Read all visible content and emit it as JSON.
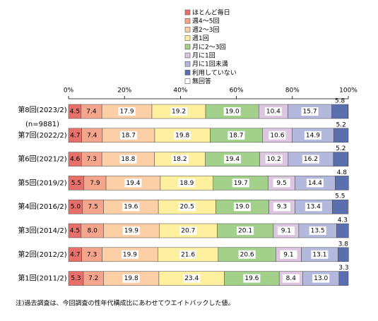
{
  "chart_data": {
    "type": "stacked-bar-horizontal",
    "categories": [
      "第8回(2023/2)",
      "第7回(2022/2)",
      "第6回(2021/2)",
      "第5回(2019/2)",
      "第4回(2016/2)",
      "第3回(2014/2)",
      "第2回(2012/2)",
      "第1回(2011/2)"
    ],
    "category_note": "(n=9881)",
    "xlim": [
      0,
      100
    ],
    "xticks": [
      {
        "value": 0,
        "label": "0%"
      },
      {
        "value": 20,
        "label": "20%"
      },
      {
        "value": 40,
        "label": "40%"
      },
      {
        "value": 60,
        "label": "60%"
      },
      {
        "value": 80,
        "label": "80%"
      },
      {
        "value": 100,
        "label": "100%"
      }
    ],
    "series": [
      {
        "name": "ほとんど毎日",
        "color": "#e8706a",
        "values": [
          4.5,
          4.7,
          4.6,
          5.5,
          5.0,
          4.5,
          4.7,
          5.3
        ],
        "value_labels": [
          "4.5",
          "4.7",
          "4.6",
          "5.5",
          "5.0",
          "4.5",
          "4.7",
          "5.3"
        ]
      },
      {
        "name": "週4～5回",
        "color": "#f4a58c",
        "values": [
          7.4,
          7.4,
          7.3,
          7.9,
          7.5,
          8.0,
          7.3,
          7.2
        ],
        "value_labels": [
          "7.4",
          "7.4",
          "7.3",
          "7.9",
          "7.5",
          "8.0",
          "7.3",
          "7.2"
        ]
      },
      {
        "name": "週2～3回",
        "color": "#fccfa6",
        "values": [
          17.9,
          18.7,
          18.8,
          19.4,
          19.6,
          19.9,
          19.9,
          19.8
        ],
        "value_labels": [
          "17.9",
          "18.7",
          "18.8",
          "19.4",
          "19.6",
          "19.9",
          "19.9",
          "19.8"
        ]
      },
      {
        "name": "週1回",
        "color": "#fff0a0",
        "values": [
          19.2,
          19.8,
          18.2,
          18.9,
          20.5,
          20.7,
          21.6,
          23.4
        ],
        "value_labels": [
          "19.2",
          "19.8",
          "18.2",
          "18.9",
          "20.5",
          "20.7",
          "21.6",
          "23.4"
        ]
      },
      {
        "name": "月に2～3回",
        "color": "#a3d18c",
        "values": [
          19.0,
          18.7,
          19.4,
          19.7,
          19.0,
          20.1,
          20.6,
          19.6
        ],
        "value_labels": [
          "19.0",
          "18.7",
          "19.4",
          "19.7",
          "19.0",
          "20.1",
          "20.6",
          "19.6"
        ]
      },
      {
        "name": "月に1回",
        "color": "#dcc6e0",
        "values": [
          10.4,
          10.6,
          10.2,
          9.5,
          9.3,
          9.1,
          9.1,
          8.4
        ],
        "value_labels": [
          "10.4",
          "10.6",
          "10.2",
          "9.5",
          "9.3",
          "9.1",
          "9.1",
          "8.4"
        ]
      },
      {
        "name": "月に1回未満",
        "color": "#b3b8dd",
        "values": [
          15.7,
          14.9,
          16.2,
          14.4,
          13.4,
          13.5,
          13.1,
          13.0
        ],
        "value_labels": [
          "15.7",
          "14.9",
          "16.2",
          "14.4",
          "13.4",
          "13.5",
          "13.1",
          "13.0"
        ]
      },
      {
        "name": "利用していない",
        "color": "#5b6fae",
        "values": [
          5.8,
          5.2,
          5.2,
          4.8,
          5.5,
          4.3,
          3.8,
          3.3
        ],
        "value_labels": [
          "5.8",
          "5.2",
          "5.2",
          "4.8",
          "5.5",
          "4.3",
          "3.8",
          "3.3"
        ]
      },
      {
        "name": "無回答",
        "color": "#ffffff",
        "values": [
          0.1,
          0,
          0.1,
          0,
          0.2,
          0,
          0,
          0
        ]
      }
    ],
    "note": "注)過去調査は、今回調査の性年代構成比にあわせてウエイトバックした値。"
  }
}
